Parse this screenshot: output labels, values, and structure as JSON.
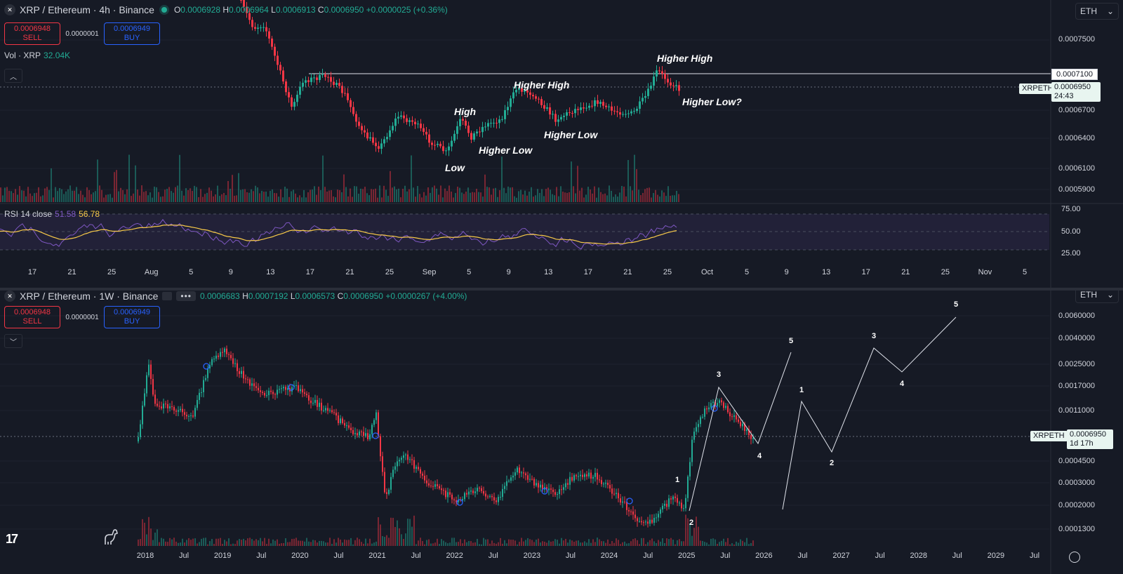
{
  "top_chart": {
    "symbol_title": "XRP / Ethereum · 4h · Binance",
    "ohlc": {
      "o_key": "O",
      "o": "0.0006928",
      "h_key": "H",
      "h": "0.0006964",
      "l_key": "L",
      "l": "0.0006913",
      "c_key": "C",
      "c": "0.0006950",
      "change": "+0.0000025 (+0.36%)"
    },
    "sell_price": "0.0006948",
    "sell_label": "SELL",
    "spread": "0.0000001",
    "buy_price": "0.0006949",
    "buy_label": "BUY",
    "volume_label": "Vol · XRP",
    "volume_value": "32.04K",
    "rsi_label": "RSI 14 close",
    "rsi_value": "51.58",
    "rsi_ma_value": "56.78",
    "currency": "ETH",
    "price_axis": [
      "0.0007500",
      "0.0006700",
      "0.0006400",
      "0.0006100",
      "0.0005900"
    ],
    "resistance_tag": "0.0007100",
    "symbol_tag": "XRPETH",
    "last_price_tag": "0.0006950",
    "countdown": "24:43",
    "rsi_axis": [
      "75.00",
      "50.00",
      "25.00"
    ],
    "time_axis": [
      "17",
      "21",
      "25",
      "Aug",
      "5",
      "9",
      "13",
      "17",
      "21",
      "25",
      "Sep",
      "5",
      "9",
      "13",
      "17",
      "21",
      "25",
      "Oct",
      "5",
      "9",
      "13",
      "17",
      "21",
      "25",
      "Nov",
      "5"
    ],
    "annotations": [
      "Higher High",
      "Higher High",
      "High",
      "Higher Low",
      "Higher Low",
      "Low",
      "Higher Low?"
    ]
  },
  "bottom_chart": {
    "symbol_title": "XRP / Ethereum · 1W · Binance",
    "more_label": "•••",
    "ohlc": {
      "o": "0.0006683",
      "h_key": "H",
      "h": "0.0007192",
      "l_key": "L",
      "l": "0.0006573",
      "c_key": "C",
      "c": "0.0006950",
      "change": "+0.0000267 (+4.00%)"
    },
    "sell_price": "0.0006948",
    "sell_label": "SELL",
    "spread": "0.0000001",
    "buy_price": "0.0006949",
    "buy_label": "BUY",
    "currency": "ETH",
    "price_axis": [
      "0.0060000",
      "0.0040000",
      "0.0025000",
      "0.0017000",
      "0.0011000",
      "0.0004500",
      "0.0003000",
      "0.0002000",
      "0.0001300"
    ],
    "symbol_tag": "XRPETH",
    "last_price_tag": "0.0006950",
    "countdown": "1d 17h",
    "time_axis": [
      "2018",
      "Jul",
      "2019",
      "Jul",
      "2020",
      "Jul",
      "2021",
      "Jul",
      "2022",
      "Jul",
      "2023",
      "Jul",
      "2024",
      "Jul",
      "2025",
      "Jul",
      "2026",
      "Jul",
      "2027",
      "Jul",
      "2028",
      "Jul",
      "2029",
      "Jul"
    ],
    "wave_labels": [
      "1",
      "2",
      "3",
      "4",
      "5",
      "1",
      "2",
      "3",
      "4",
      "5"
    ]
  },
  "icons": {
    "logo": "tradingview-logo",
    "dino": "dino-icon",
    "settings": "settings-icon"
  },
  "colors": {
    "up": "#22ab94",
    "down": "#f23645",
    "rsi": "#7e57c2",
    "rsi_ma": "#f7c948",
    "background": "#161a25"
  }
}
